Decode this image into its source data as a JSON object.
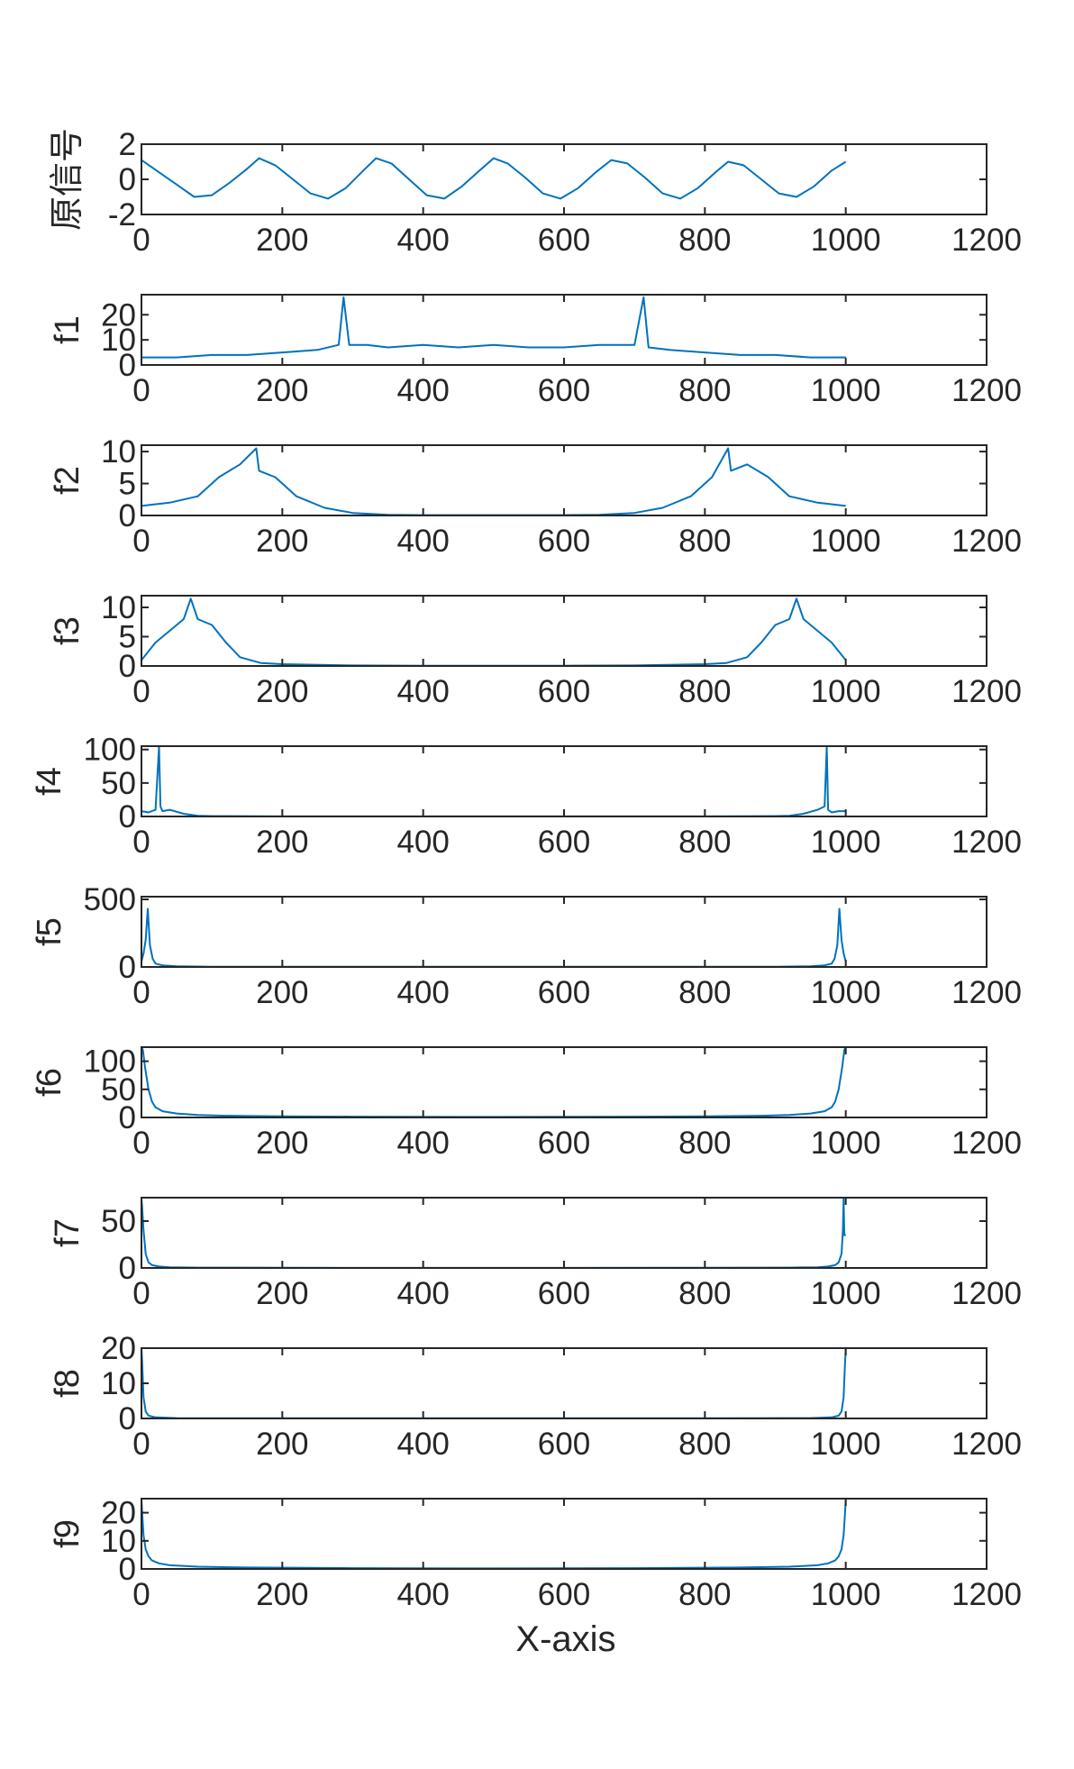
{
  "chart_data": [
    {
      "type": "line",
      "ylabel": "原信号",
      "xlim": [
        0,
        1200
      ],
      "ylim": [
        -2,
        2
      ],
      "xticks": [
        "0",
        "200",
        "400",
        "600",
        "800",
        "1000",
        "1200"
      ],
      "yticks": [
        "-2",
        "0",
        "2"
      ],
      "series": [
        {
          "color": "#0072BD",
          "x": [
            0,
            25,
            50,
            75,
            100,
            125,
            150,
            167,
            190,
            215,
            240,
            265,
            290,
            315,
            333,
            355,
            380,
            405,
            430,
            455,
            480,
            500,
            520,
            545,
            570,
            595,
            620,
            645,
            667,
            690,
            715,
            740,
            765,
            790,
            815,
            833,
            855,
            880,
            905,
            930,
            955,
            980,
            1000
          ],
          "y": [
            1.1,
            0.4,
            -0.3,
            -1.0,
            -0.9,
            -0.2,
            0.6,
            1.2,
            0.8,
            0.0,
            -0.8,
            -1.1,
            -0.5,
            0.5,
            1.2,
            0.9,
            0.0,
            -0.9,
            -1.1,
            -0.4,
            0.5,
            1.2,
            0.9,
            0.1,
            -0.8,
            -1.1,
            -0.5,
            0.4,
            1.1,
            0.9,
            0.1,
            -0.8,
            -1.1,
            -0.5,
            0.4,
            1.0,
            0.8,
            0.0,
            -0.8,
            -1.0,
            -0.4,
            0.5,
            1.0
          ]
        }
      ]
    },
    {
      "type": "line",
      "ylabel": "f1",
      "xlim": [
        0,
        1200
      ],
      "ylim": [
        0,
        28
      ],
      "xticks": [
        "0",
        "200",
        "400",
        "600",
        "800",
        "1000",
        "1200"
      ],
      "yticks": [
        "0",
        "10",
        "20"
      ],
      "series": [
        {
          "color": "#0072BD",
          "x": [
            0,
            50,
            100,
            150,
            200,
            250,
            280,
            287,
            295,
            320,
            350,
            400,
            450,
            500,
            550,
            600,
            650,
            700,
            713,
            720,
            750,
            800,
            850,
            900,
            950,
            1000
          ],
          "y": [
            3,
            3,
            4,
            4,
            5,
            6,
            8,
            27,
            8,
            8,
            7,
            8,
            7,
            8,
            7,
            7,
            8,
            8,
            27,
            7,
            6,
            5,
            4,
            4,
            3,
            3
          ]
        }
      ]
    },
    {
      "type": "line",
      "ylabel": "f2",
      "xlim": [
        0,
        1200
      ],
      "ylim": [
        0,
        11
      ],
      "xticks": [
        "0",
        "200",
        "400",
        "600",
        "800",
        "1000",
        "1200"
      ],
      "yticks": [
        "0",
        "5",
        "10"
      ],
      "series": [
        {
          "color": "#0072BD",
          "x": [
            0,
            40,
            80,
            110,
            140,
            163,
            167,
            190,
            220,
            260,
            300,
            350,
            400,
            450,
            500,
            550,
            600,
            650,
            700,
            740,
            780,
            810,
            833,
            837,
            860,
            890,
            920,
            960,
            1000
          ],
          "y": [
            1.5,
            2,
            3,
            6,
            8,
            10.5,
            7,
            6,
            3,
            1.2,
            0.4,
            0.1,
            0.05,
            0.05,
            0.05,
            0.05,
            0.05,
            0.1,
            0.4,
            1.2,
            3,
            6,
            10.5,
            7,
            8,
            6,
            3,
            2,
            1.5
          ]
        }
      ]
    },
    {
      "type": "line",
      "ylabel": "f3",
      "xlim": [
        0,
        1200
      ],
      "ylim": [
        0,
        12
      ],
      "xticks": [
        "0",
        "200",
        "400",
        "600",
        "800",
        "1000",
        "1200"
      ],
      "yticks": [
        "0",
        "5",
        "10"
      ],
      "series": [
        {
          "color": "#0072BD",
          "x": [
            0,
            20,
            40,
            60,
            70,
            80,
            100,
            120,
            140,
            170,
            200,
            300,
            400,
            500,
            600,
            700,
            800,
            830,
            860,
            880,
            900,
            920,
            930,
            940,
            960,
            980,
            1000
          ],
          "y": [
            1,
            4,
            6,
            8,
            11.5,
            8,
            7,
            4,
            1.5,
            0.5,
            0.3,
            0.1,
            0.05,
            0.05,
            0.05,
            0.1,
            0.3,
            0.5,
            1.5,
            4,
            7,
            8,
            11.5,
            8,
            6,
            4,
            1
          ]
        }
      ]
    },
    {
      "type": "line",
      "ylabel": "f4",
      "xlim": [
        0,
        1200
      ],
      "ylim": [
        0,
        105
      ],
      "xticks": [
        "0",
        "200",
        "400",
        "600",
        "800",
        "1000",
        "1200"
      ],
      "yticks": [
        "0",
        "50",
        "100"
      ],
      "series": [
        {
          "color": "#0072BD",
          "x": [
            0,
            10,
            20,
            25,
            27,
            30,
            40,
            60,
            80,
            100,
            200,
            400,
            600,
            800,
            900,
            920,
            940,
            960,
            970,
            973,
            975,
            980,
            990,
            1000
          ],
          "y": [
            8,
            6,
            10,
            104,
            15,
            8,
            10,
            4,
            1,
            0.5,
            0.2,
            0.1,
            0.1,
            0.2,
            0.5,
            1,
            4,
            10,
            15,
            104,
            10,
            6,
            8,
            8
          ]
        }
      ]
    },
    {
      "type": "line",
      "ylabel": "f5",
      "xlim": [
        0,
        1200
      ],
      "ylim": [
        0,
        520
      ],
      "xticks": [
        "0",
        "200",
        "400",
        "600",
        "800",
        "1000",
        "1200"
      ],
      "yticks": [
        "0",
        "500"
      ],
      "series": [
        {
          "color": "#0072BD",
          "x": [
            0,
            3,
            6,
            9,
            12,
            16,
            20,
            30,
            50,
            100,
            300,
            500,
            700,
            900,
            950,
            970,
            980,
            984,
            988,
            991,
            994,
            997,
            1000
          ],
          "y": [
            40,
            100,
            200,
            430,
            160,
            60,
            25,
            12,
            5,
            2,
            1,
            1,
            1,
            2,
            5,
            12,
            25,
            60,
            160,
            430,
            200,
            100,
            40
          ]
        }
      ]
    },
    {
      "type": "line",
      "ylabel": "f6",
      "xlim": [
        0,
        1200
      ],
      "ylim": [
        0,
        125
      ],
      "xticks": [
        "0",
        "200",
        "400",
        "600",
        "800",
        "1000",
        "1200"
      ],
      "yticks": [
        "0",
        "50",
        "100"
      ],
      "series": [
        {
          "color": "#0072BD",
          "x": [
            0,
            2,
            5,
            10,
            15,
            20,
            30,
            50,
            80,
            120,
            200,
            300,
            500,
            700,
            800,
            880,
            920,
            950,
            970,
            980,
            985,
            990,
            995,
            998,
            1000
          ],
          "y": [
            125,
            120,
            90,
            50,
            28,
            18,
            11,
            7,
            4.5,
            3,
            2,
            1.5,
            1,
            1.5,
            2,
            3,
            4.5,
            7,
            11,
            18,
            28,
            50,
            90,
            120,
            125
          ]
        }
      ]
    },
    {
      "type": "line",
      "ylabel": "f7",
      "xlim": [
        0,
        1200
      ],
      "ylim": [
        0,
        75
      ],
      "xticks": [
        "0",
        "200",
        "400",
        "600",
        "800",
        "1000",
        "1200"
      ],
      "yticks": [
        "0",
        "50"
      ],
      "series": [
        {
          "color": "#0072BD",
          "x": [
            0,
            1,
            3,
            6,
            10,
            15,
            25,
            40,
            80,
            200,
            500,
            800,
            920,
            960,
            975,
            985,
            990,
            994,
            996,
            997,
            998,
            1000
          ],
          "y": [
            74,
            65,
            40,
            15,
            6,
            3,
            1.5,
            0.8,
            0.4,
            0.2,
            0.1,
            0.2,
            0.4,
            0.8,
            1.5,
            3,
            6,
            15,
            40,
            74,
            35,
            35
          ]
        }
      ]
    },
    {
      "type": "line",
      "ylabel": "f8",
      "xlim": [
        0,
        1200
      ],
      "ylim": [
        0,
        20
      ],
      "xticks": [
        "0",
        "200",
        "400",
        "600",
        "800",
        "1000",
        "1200"
      ],
      "yticks": [
        "0",
        "10",
        "20"
      ],
      "series": [
        {
          "color": "#0072BD",
          "x": [
            0,
            1,
            3,
            6,
            10,
            20,
            50,
            200,
            500,
            800,
            950,
            980,
            990,
            994,
            997,
            999,
            1000
          ],
          "y": [
            20,
            16,
            6,
            2,
            0.8,
            0.3,
            0.1,
            0.05,
            0.05,
            0.05,
            0.1,
            0.3,
            0.8,
            2,
            6,
            16,
            20
          ]
        }
      ]
    },
    {
      "type": "line",
      "ylabel": "f9",
      "xlim": [
        0,
        1200
      ],
      "ylim": [
        0,
        25
      ],
      "xticks": [
        "0",
        "200",
        "400",
        "600",
        "800",
        "1000",
        "1200"
      ],
      "yticks": [
        "0",
        "10",
        "20"
      ],
      "series": [
        {
          "color": "#0072BD",
          "x": [
            0,
            1,
            3,
            6,
            10,
            15,
            25,
            40,
            80,
            150,
            300,
            500,
            700,
            850,
            920,
            960,
            975,
            985,
            990,
            994,
            997,
            999,
            1000
          ],
          "y": [
            25,
            20,
            12,
            7,
            4.5,
            3,
            2,
            1.3,
            0.8,
            0.5,
            0.3,
            0.2,
            0.3,
            0.5,
            0.8,
            1.3,
            2,
            3,
            4.5,
            7,
            12,
            20,
            25
          ]
        }
      ]
    }
  ],
  "xlabel": "X-axis"
}
